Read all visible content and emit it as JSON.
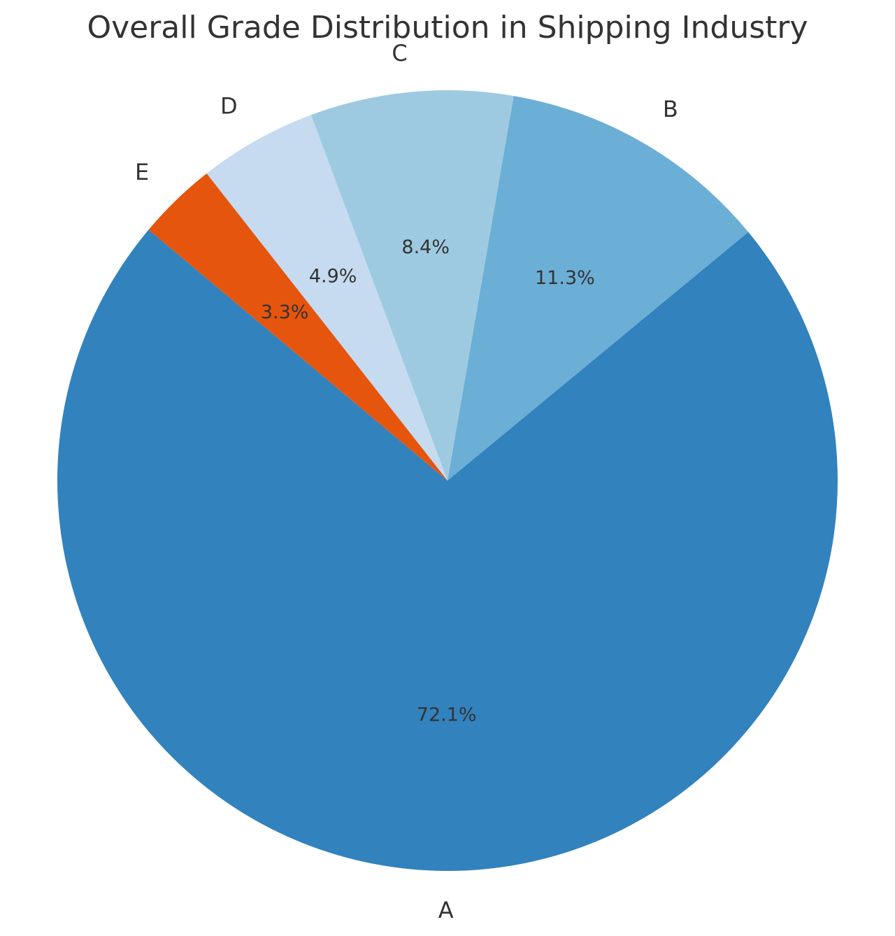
{
  "chart_data": {
    "type": "pie",
    "title": "Overall Grade Distribution in Shipping Industry",
    "slices": [
      {
        "label": "A",
        "value": 72.1,
        "pct_text": "72.1%",
        "color": "#3282bd"
      },
      {
        "label": "B",
        "value": 11.3,
        "pct_text": "11.3%",
        "color": "#6baed6"
      },
      {
        "label": "C",
        "value": 8.4,
        "pct_text": "8.4%",
        "color": "#9ecae1"
      },
      {
        "label": "D",
        "value": 4.9,
        "pct_text": "4.9%",
        "color": "#c6dbef"
      },
      {
        "label": "E",
        "value": 3.3,
        "pct_text": "3.3%",
        "color": "#e6550d"
      }
    ],
    "start_angle_deg": 140,
    "direction": "counterclockwise",
    "legend": "none"
  }
}
